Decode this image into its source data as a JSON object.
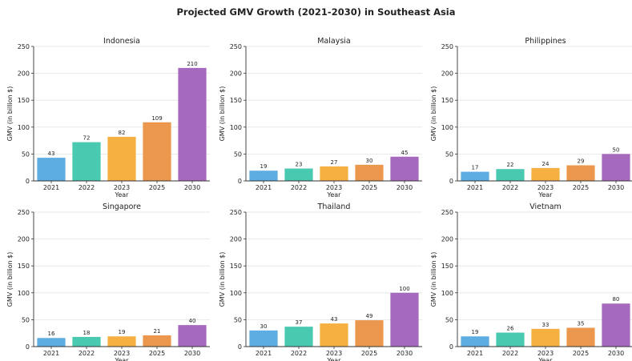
{
  "title": "Projected GMV Growth (2021-2030) in Southeast Asia",
  "chart_data": [
    {
      "type": "bar",
      "title": "Indonesia",
      "categories": [
        "2021",
        "2022",
        "2023",
        "2025",
        "2030"
      ],
      "values": [
        43,
        72,
        82,
        109,
        210
      ],
      "xlabel": "Year",
      "ylabel": "GMV (in billion $)",
      "ylim": [
        0,
        250
      ],
      "yticks": [
        0,
        50,
        100,
        150,
        200,
        250
      ],
      "grid": true
    },
    {
      "type": "bar",
      "title": "Malaysia",
      "categories": [
        "2021",
        "2022",
        "2023",
        "2025",
        "2030"
      ],
      "values": [
        19,
        23,
        27,
        30,
        45
      ],
      "xlabel": "Year",
      "ylabel": "GMV (in billion $)",
      "ylim": [
        0,
        250
      ],
      "yticks": [
        0,
        50,
        100,
        150,
        200,
        250
      ],
      "grid": true
    },
    {
      "type": "bar",
      "title": "Philippines",
      "categories": [
        "2021",
        "2022",
        "2023",
        "2025",
        "2030"
      ],
      "values": [
        17,
        22,
        24,
        29,
        50
      ],
      "xlabel": "Year",
      "ylabel": "GMV (in billion $)",
      "ylim": [
        0,
        250
      ],
      "yticks": [
        0,
        50,
        100,
        150,
        200,
        250
      ],
      "grid": true
    },
    {
      "type": "bar",
      "title": "Singapore",
      "categories": [
        "2021",
        "2022",
        "2023",
        "2025",
        "2030"
      ],
      "values": [
        16,
        18,
        19,
        21,
        40
      ],
      "xlabel": "Year",
      "ylabel": "GMV (in billion $)",
      "ylim": [
        0,
        250
      ],
      "yticks": [
        0,
        50,
        100,
        150,
        200,
        250
      ],
      "grid": true
    },
    {
      "type": "bar",
      "title": "Thailand",
      "categories": [
        "2021",
        "2022",
        "2023",
        "2025",
        "2030"
      ],
      "values": [
        30,
        37,
        43,
        49,
        100
      ],
      "xlabel": "Year",
      "ylabel": "GMV (in billion $)",
      "ylim": [
        0,
        250
      ],
      "yticks": [
        0,
        50,
        100,
        150,
        200,
        250
      ],
      "grid": true
    },
    {
      "type": "bar",
      "title": "Vietnam",
      "categories": [
        "2021",
        "2022",
        "2023",
        "2025",
        "2030"
      ],
      "values": [
        19,
        26,
        33,
        35,
        80
      ],
      "xlabel": "Year",
      "ylabel": "GMV (in billion $)",
      "ylim": [
        0,
        250
      ],
      "yticks": [
        0,
        50,
        100,
        150,
        200,
        250
      ],
      "grid": true
    }
  ],
  "colors": [
    "#5dade2",
    "#48c9b0",
    "#f5b041",
    "#eb984e",
    "#a569bd"
  ]
}
